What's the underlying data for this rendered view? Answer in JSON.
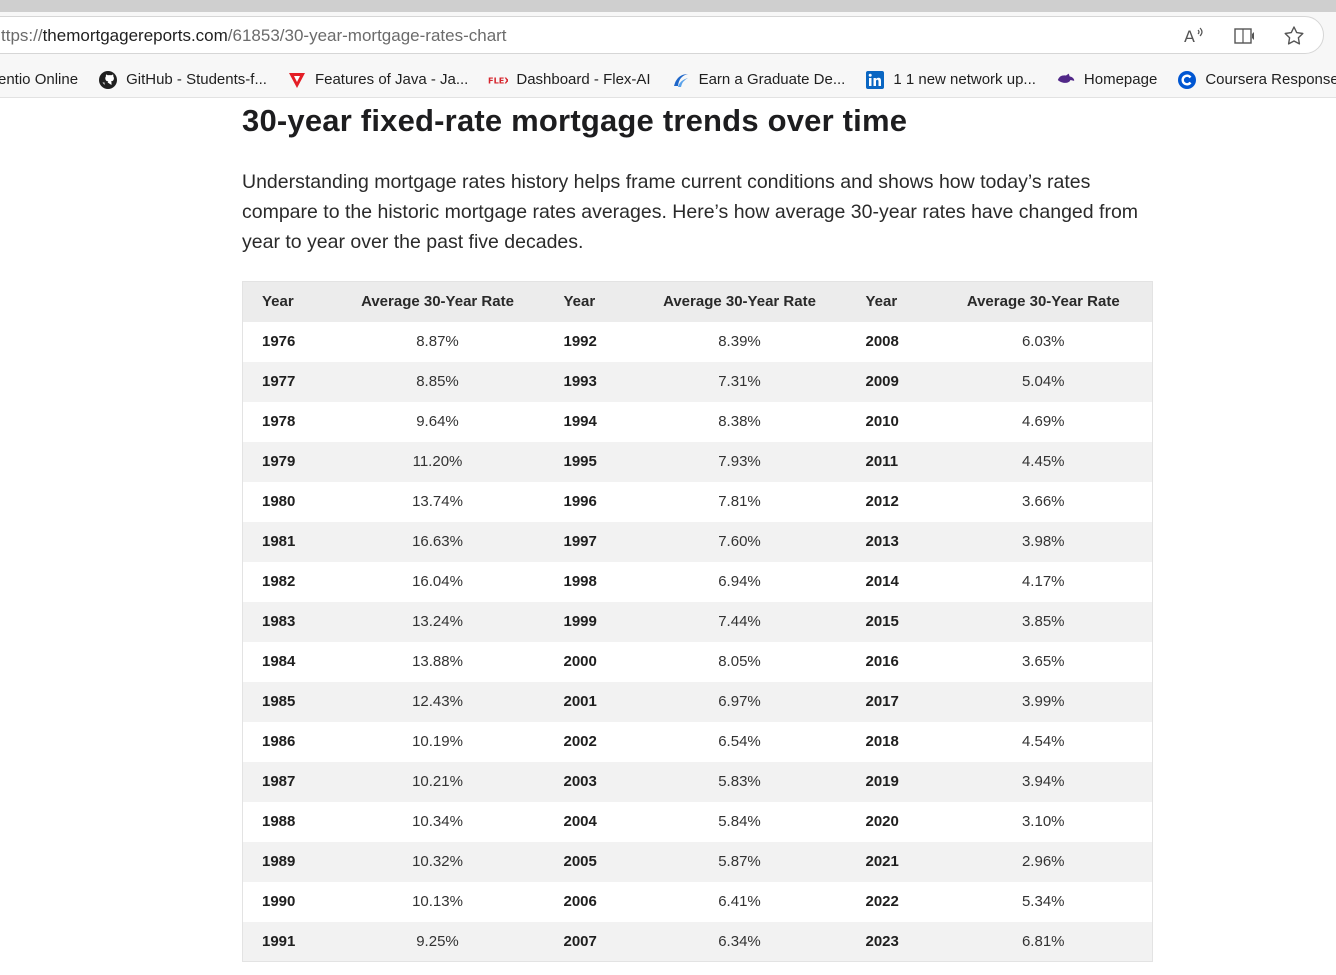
{
  "browser": {
    "url_prefix": "ttps://",
    "url_host": "themortgagereports.com",
    "url_path": "/61853/30-year-mortgage-rates-chart",
    "bookmarks": [
      {
        "label": "entio Online",
        "icon": "none"
      },
      {
        "label": "GitHub - Students-f...",
        "icon": "github-icon"
      },
      {
        "label": "Features of Java - Ja...",
        "icon": "red-triangle-icon"
      },
      {
        "label": "Dashboard - Flex-AI",
        "icon": "flex-logo-icon"
      },
      {
        "label": "Earn a Graduate De...",
        "icon": "swirl-logo-icon"
      },
      {
        "label": "1 1 new network up...",
        "icon": "linkedin-icon"
      },
      {
        "label": "Homepage",
        "icon": "purple-cat-icon"
      },
      {
        "label": "Coursera Response...",
        "icon": "coursera-icon"
      }
    ]
  },
  "article": {
    "heading": "30-year fixed-rate mortgage trends over time",
    "intro": "Understanding mortgage rates history helps frame current conditions and shows how today’s rates compare to the historic mortgage rates averages. Here’s how average 30-year rates have changed from year to year over the past five decades."
  },
  "table": {
    "headers": [
      "Year",
      "Average 30-Year Rate",
      "Year",
      "Average 30-Year Rate",
      "Year",
      "Average 30-Year Rate"
    ],
    "rows": [
      [
        "1976",
        "8.87%",
        "1992",
        "8.39%",
        "2008",
        "6.03%"
      ],
      [
        "1977",
        "8.85%",
        "1993",
        "7.31%",
        "2009",
        "5.04%"
      ],
      [
        "1978",
        "9.64%",
        "1994",
        "8.38%",
        "2010",
        "4.69%"
      ],
      [
        "1979",
        "11.20%",
        "1995",
        "7.93%",
        "2011",
        "4.45%"
      ],
      [
        "1980",
        "13.74%",
        "1996",
        "7.81%",
        "2012",
        "3.66%"
      ],
      [
        "1981",
        "16.63%",
        "1997",
        "7.60%",
        "2013",
        "3.98%"
      ],
      [
        "1982",
        "16.04%",
        "1998",
        "6.94%",
        "2014",
        "4.17%"
      ],
      [
        "1983",
        "13.24%",
        "1999",
        "7.44%",
        "2015",
        "3.85%"
      ],
      [
        "1984",
        "13.88%",
        "2000",
        "8.05%",
        "2016",
        "3.65%"
      ],
      [
        "1985",
        "12.43%",
        "2001",
        "6.97%",
        "2017",
        "3.99%"
      ],
      [
        "1986",
        "10.19%",
        "2002",
        "6.54%",
        "2018",
        "4.54%"
      ],
      [
        "1987",
        "10.21%",
        "2003",
        "5.83%",
        "2019",
        "3.94%"
      ],
      [
        "1988",
        "10.34%",
        "2004",
        "5.84%",
        "2020",
        "3.10%"
      ],
      [
        "1989",
        "10.32%",
        "2005",
        "5.87%",
        "2021",
        "2.96%"
      ],
      [
        "1990",
        "10.13%",
        "2006",
        "6.41%",
        "2022",
        "5.34%"
      ],
      [
        "1991",
        "9.25%",
        "2007",
        "6.34%",
        "2023",
        "6.81%"
      ]
    ]
  }
}
